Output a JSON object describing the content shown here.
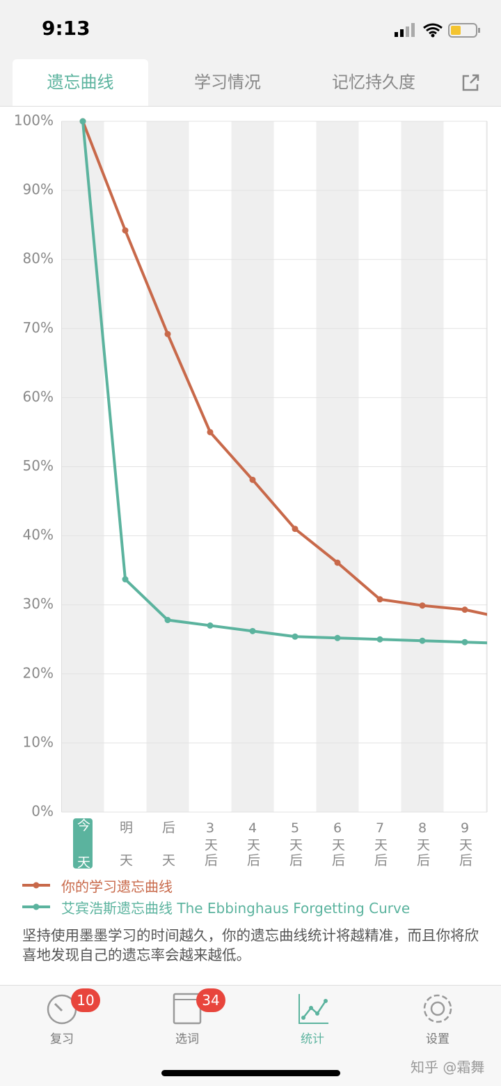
{
  "status_bar": {
    "time": "9:13"
  },
  "tabs": [
    "遗忘曲线",
    "学习情况",
    "记忆持久度"
  ],
  "chart_data": {
    "type": "line",
    "categories": [
      "今天",
      "明天",
      "后天",
      "3天后",
      "4天后",
      "5天后",
      "6天后",
      "7天后",
      "8天后",
      "9天后",
      null
    ],
    "series": [
      {
        "name": "你的学习遗忘曲线",
        "color": "#c8694a",
        "values": [
          100,
          84.2,
          69.2,
          55,
          48.1,
          41,
          36.1,
          30.8,
          29.9,
          29.3,
          28.0
        ]
      },
      {
        "name": "艾宾浩斯遗忘曲线 The Ebbinghaus Forgetting Curve",
        "color": "#5bb39e",
        "values": [
          100,
          33.7,
          27.8,
          27.0,
          26.2,
          25.4,
          25.2,
          25.0,
          24.8,
          24.6,
          24.4
        ]
      }
    ],
    "ylim": [
      0,
      100
    ],
    "yticks": [
      {
        "value": 0,
        "label": "0%"
      },
      {
        "value": 10,
        "label": "10%"
      },
      {
        "value": 20,
        "label": "20%"
      },
      {
        "value": 30,
        "label": "30%"
      },
      {
        "value": 40,
        "label": "40%"
      },
      {
        "value": 50,
        "label": "50%"
      },
      {
        "value": 60,
        "label": "60%"
      },
      {
        "value": 70,
        "label": "70%"
      },
      {
        "value": 80,
        "label": "80%"
      },
      {
        "value": 90,
        "label": "90%"
      },
      {
        "value": 100,
        "label": "100%"
      }
    ],
    "grid": true
  },
  "note": "坚持使用墨墨学习的时间越久，你的遗忘曲线统计将越精准，而且你将欣喜地发现自己的遗忘率会越来越低。",
  "nav": [
    {
      "label": "复习",
      "badge": 10
    },
    {
      "label": "选词",
      "badge": 34
    },
    {
      "label": "统计"
    },
    {
      "label": "设置"
    }
  ],
  "watermark": "知乎 @霜舞"
}
